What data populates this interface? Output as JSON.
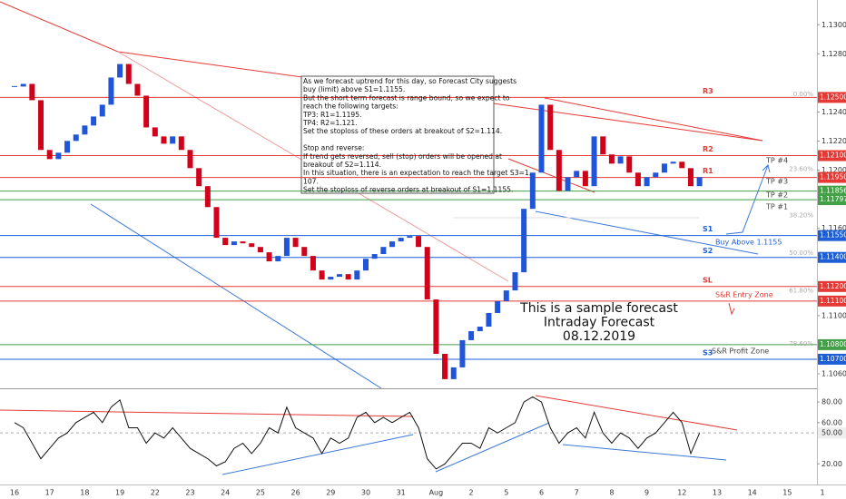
{
  "chart_data": [
    {
      "type": "candlestick",
      "categories": [
        "16",
        null,
        null,
        null,
        "17",
        null,
        null,
        null,
        "18",
        null,
        null,
        null,
        "19",
        null,
        null,
        null,
        "22",
        null,
        null,
        null,
        "23",
        null,
        null,
        null,
        "24",
        null,
        null,
        null,
        "25",
        null,
        null,
        null,
        "26",
        null,
        null,
        null,
        "29",
        null,
        null,
        null,
        "30",
        null,
        null,
        null,
        "31",
        null,
        null,
        null,
        "Aug",
        null,
        null,
        null,
        "2",
        null,
        null,
        null,
        "5",
        null,
        null,
        null,
        "6",
        null,
        null,
        null,
        "7",
        null,
        null,
        null,
        "8",
        null,
        null,
        null,
        "9",
        null,
        null,
        null,
        "12",
        null,
        null,
        null,
        "13",
        null,
        null,
        null,
        "14",
        null,
        null,
        null,
        "15",
        null,
        null,
        null,
        "1",
        null,
        null,
        null
      ],
      "values": [
        1.12575,
        1.12593,
        1.12481,
        1.12139,
        1.12076,
        1.1212,
        1.12201,
        1.12245,
        1.12307,
        1.12369,
        1.1245,
        1.12637,
        1.1273,
        1.12593,
        1.12512,
        1.12294,
        1.12232,
        1.12182,
        1.12232,
        1.12139,
        1.12014,
        1.1189,
        1.11746,
        1.11535,
        1.11485,
        1.1151,
        1.11497,
        1.11472,
        1.11435,
        1.11373,
        1.1141,
        1.11535,
        1.11472,
        1.1141,
        1.1131,
        1.11248,
        1.11267,
        1.11285,
        1.11248,
        1.1131,
        1.11391,
        1.11423,
        1.11472,
        1.1151,
        1.11535,
        1.11547,
        1.11472,
        1.11111,
        1.10737,
        1.10563,
        1.10644,
        1.10831,
        1.10893,
        1.10924,
        1.11018,
        1.11099,
        1.11173,
        1.11298,
        1.11734,
        1.11983,
        1.1245,
        1.12139,
        1.11858,
        1.11952,
        1.11995,
        1.1189,
        1.12232,
        1.12108,
        1.12045,
        1.12095,
        1.11983,
        1.1189,
        1.11952,
        1.11983,
        1.12045,
        1.12058,
        1.12014,
        1.1189,
        1.11952,
        null,
        null,
        null,
        null,
        null,
        null,
        null,
        null,
        null,
        null,
        null,
        null,
        null,
        null,
        null,
        null,
        null
      ],
      "up_color": "#2155d9",
      "down_color": "#d0021b",
      "ylim": [
        1.105,
        1.1317
      ],
      "yticks": [
        {
          "value": 1.13,
          "label": "1.13000"
        },
        {
          "value": 1.128,
          "label": "1.12800"
        },
        {
          "value": 1.124,
          "label": "1.12400"
        },
        {
          "value": 1.122,
          "label": "1.12200"
        },
        {
          "value": 1.12,
          "label": "1.12000"
        },
        {
          "value": 1.116,
          "label": "1.11600"
        },
        {
          "value": 1.11,
          "label": "1.11000"
        },
        {
          "value": 1.106,
          "label": "1.10600"
        }
      ],
      "levels": [
        {
          "value": 1.125,
          "label": "1.12500",
          "name": "R3",
          "color": "#e53935"
        },
        {
          "value": 1.121,
          "label": "1.12100",
          "name": "R2",
          "color": "#e53935"
        },
        {
          "value": 1.1195,
          "label": "1.11950",
          "name": "R1",
          "color": "#e53935"
        },
        {
          "value": 1.11856,
          "label": "1.11856",
          "color": "#43a047"
        },
        {
          "value": 1.11797,
          "label": "1.11797",
          "color": "#43a047"
        },
        {
          "value": 1.1155,
          "label": "1.11550",
          "name": "S1",
          "color": "#1e5fd6"
        },
        {
          "value": 1.114,
          "label": "1.11400",
          "name": "S2",
          "color": "#1e5fd6"
        },
        {
          "value": 1.112,
          "label": "1.11200",
          "name": "SL",
          "color": "#e53935"
        },
        {
          "value": 1.111,
          "label": "1.11100",
          "color": "#e53935"
        },
        {
          "value": 1.108,
          "label": "1.10800",
          "color": "#43a047"
        },
        {
          "value": 1.107,
          "label": "1.10700",
          "name": "S3",
          "color": "#1e5fd6"
        }
      ],
      "fib_levels": [
        {
          "value": 0,
          "label": "0.00%"
        },
        {
          "value": 23.6,
          "label": "23.60%"
        },
        {
          "value": 38.2,
          "label": "38.20%"
        },
        {
          "value": 50,
          "label": "50.00%"
        },
        {
          "value": 61.8,
          "label": "61.80%"
        },
        {
          "value": 78.6,
          "label": "78.60%"
        }
      ],
      "annotations": [
        "S&R Entry Zone",
        "S&R Profit Zone",
        "Buy Above  1.1155",
        "TP #4",
        "TP #3",
        "TP #2",
        "TP #1"
      ],
      "title_lines": [
        "This is a sample forecast",
        "Intraday Forecast",
        "08.12.2019"
      ],
      "note": [
        [
          "As we forecast uptrend for this day, so Forecast City suggests",
          "buy (limit) above S1=1.1155.",
          "But the short term forecast is range bound, so we expect to",
          "reach the following targets:",
          "TP3: R1=1.1195.",
          "TP4: R2=1.121.",
          "Set the stoploss of these orders at breakout of S2=1.114."
        ],
        [
          "Stop and reverse:",
          "If trend gets reversed, sell (stop) orders will be opened at",
          "breakout of S2=1.114.",
          "In this situation, there is an expectation to reach the target S3=1.",
          "107.",
          "Set the stoploss of reverse orders at breakout of S1=1.1155."
        ]
      ]
    },
    {
      "type": "line",
      "series": [
        {
          "color": "#111111",
          "values": [
            60,
            55,
            40,
            25,
            35,
            45,
            50,
            60,
            65,
            70,
            60,
            75,
            82,
            55,
            55,
            40,
            50,
            45,
            55,
            45,
            35,
            30,
            25,
            18,
            22,
            35,
            40,
            30,
            40,
            55,
            50,
            75,
            55,
            50,
            45,
            30,
            45,
            40,
            45,
            65,
            70,
            60,
            65,
            60,
            65,
            70,
            55,
            25,
            15,
            20,
            30,
            40,
            40,
            35,
            55,
            50,
            55,
            60,
            80,
            85,
            80,
            55,
            40,
            50,
            55,
            45,
            70,
            50,
            40,
            50,
            45,
            35,
            45,
            50,
            60,
            70,
            60,
            30,
            50
          ]
        }
      ],
      "ylim": [
        3.5,
        91.5
      ],
      "yticks": [
        {
          "value": 20,
          "label": "20.00"
        },
        {
          "value": 60,
          "label": "60.00"
        },
        {
          "value": 80,
          "label": "80.00"
        }
      ],
      "level": {
        "value": 50,
        "label": "50.00"
      }
    }
  ]
}
